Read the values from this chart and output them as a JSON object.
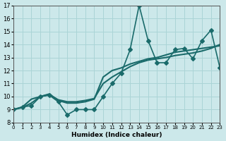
{
  "xlabel": "Humidex (Indice chaleur)",
  "ylabel": "",
  "background_color": "#cce8ea",
  "grid_color": "#aad4d6",
  "line_color": "#1a6b6b",
  "xlim": [
    0,
    23
  ],
  "ylim": [
    8,
    17
  ],
  "xticks": [
    0,
    1,
    2,
    3,
    4,
    5,
    6,
    7,
    8,
    9,
    10,
    11,
    12,
    13,
    14,
    15,
    16,
    17,
    18,
    19,
    20,
    21,
    22,
    23
  ],
  "yticks": [
    8,
    9,
    10,
    11,
    12,
    13,
    14,
    15,
    16,
    17
  ],
  "series": [
    {
      "x": [
        0,
        1,
        2,
        3,
        4,
        5,
        6,
        7,
        8,
        9,
        10,
        11,
        12,
        13,
        14,
        15,
        16,
        17,
        18,
        19,
        20,
        21,
        22,
        23
      ],
      "y": [
        9.0,
        9.2,
        9.3,
        10.0,
        10.1,
        9.6,
        8.6,
        9.0,
        9.0,
        9.0,
        10.0,
        11.0,
        11.8,
        13.6,
        17.0,
        14.3,
        12.6,
        12.6,
        13.6,
        13.7,
        12.9,
        14.3,
        15.1,
        12.2
      ],
      "marker": "D",
      "markersize": 3,
      "linewidth": 1.2,
      "has_marker": true
    },
    {
      "x": [
        0,
        1,
        2,
        3,
        4,
        5,
        6,
        7,
        8,
        9,
        10,
        11,
        12,
        13,
        14,
        15,
        16,
        17,
        18,
        19,
        20,
        21,
        22,
        23
      ],
      "y": [
        9.0,
        9.2,
        9.8,
        10.0,
        10.2,
        9.7,
        9.5,
        9.5,
        9.6,
        9.8,
        11.5,
        12.0,
        12.2,
        12.5,
        12.7,
        12.9,
        13.0,
        13.2,
        13.4,
        13.5,
        13.6,
        13.7,
        13.8,
        13.9
      ],
      "marker": "D",
      "markersize": 0,
      "linewidth": 1.5,
      "has_marker": false
    },
    {
      "x": [
        0,
        1,
        2,
        3,
        4,
        5,
        6,
        7,
        8,
        9,
        10,
        11,
        12,
        13,
        14,
        15,
        16,
        17,
        18,
        19,
        20,
        21,
        22,
        23
      ],
      "y": [
        9.0,
        9.15,
        9.5,
        10.0,
        10.15,
        9.75,
        9.6,
        9.6,
        9.7,
        9.85,
        11.0,
        11.5,
        11.9,
        12.3,
        12.6,
        12.8,
        12.9,
        13.0,
        13.15,
        13.25,
        13.35,
        13.5,
        13.7,
        14.0
      ],
      "marker": "D",
      "markersize": 0,
      "linewidth": 1.5,
      "has_marker": false
    }
  ]
}
